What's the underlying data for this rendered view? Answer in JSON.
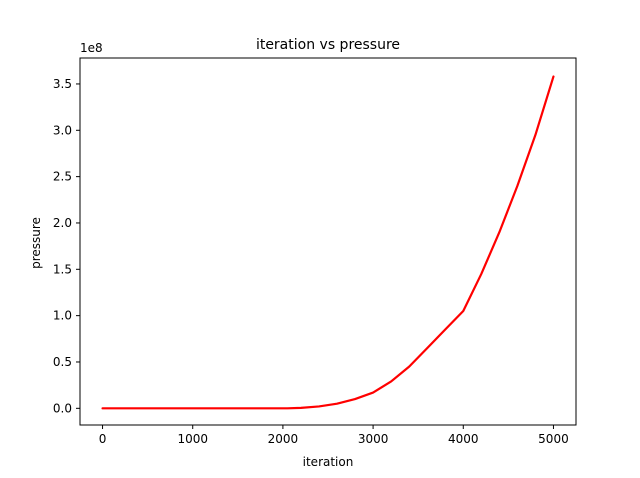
{
  "chart_data": {
    "type": "line",
    "title": "iteration vs pressure",
    "xlabel": "iteration",
    "ylabel": "pressure",
    "offset_text": "1e8",
    "xlim": [
      -250,
      5250
    ],
    "ylim": [
      -0.18,
      3.78
    ],
    "xticks": [
      0,
      1000,
      2000,
      3000,
      4000,
      5000
    ],
    "xtick_labels": [
      "0",
      "1000",
      "2000",
      "3000",
      "4000",
      "5000"
    ],
    "yticks": [
      0.0,
      0.5,
      1.0,
      1.5,
      2.0,
      2.5,
      3.0,
      3.5
    ],
    "ytick_labels": [
      "0.0",
      "0.5",
      "1.0",
      "1.5",
      "2.0",
      "2.5",
      "3.0",
      "3.5"
    ],
    "y_unit_scale": "1e8",
    "grid": false,
    "series": [
      {
        "color": "#ff0000",
        "x": [
          0,
          500,
          1000,
          1500,
          2000,
          2050,
          2200,
          2400,
          2600,
          2800,
          3000,
          3200,
          3400,
          3600,
          3800,
          4000,
          4200,
          4400,
          4600,
          4800,
          5000
        ],
        "y": [
          0.0,
          0.0,
          0.0,
          0.0,
          0.0,
          0.0,
          0.005,
          0.02,
          0.05,
          0.1,
          0.17,
          0.29,
          0.45,
          0.65,
          0.85,
          1.05,
          1.45,
          1.9,
          2.4,
          2.95,
          3.58
        ]
      }
    ]
  }
}
